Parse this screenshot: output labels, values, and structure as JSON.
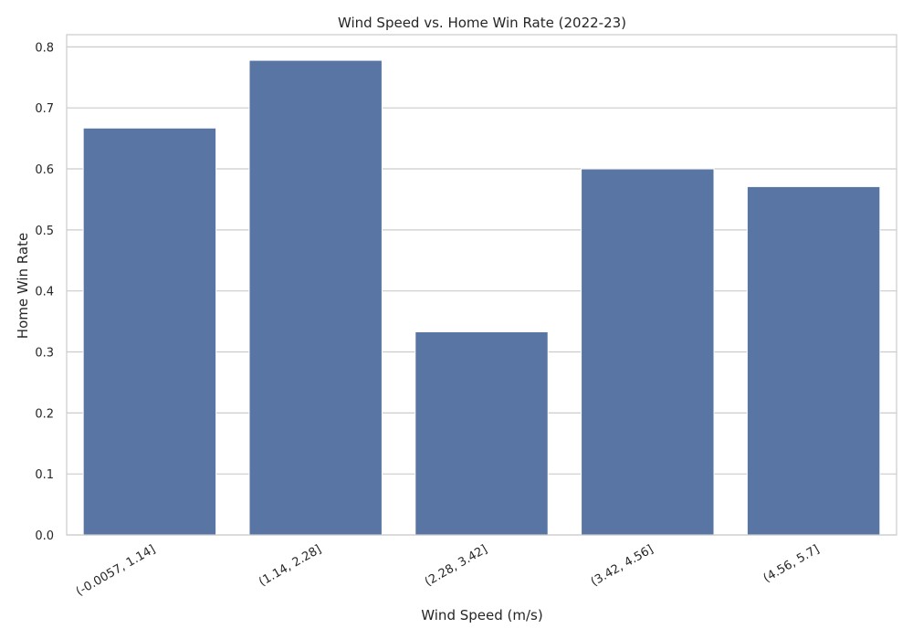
{
  "chart_data": {
    "type": "bar",
    "title": "Wind Speed vs. Home Win Rate (2022-23)",
    "xlabel": "Wind Speed (m/s)",
    "ylabel": "Home Win Rate",
    "categories": [
      "(-0.0057, 1.14]",
      "(1.14, 2.28]",
      "(2.28, 3.42]",
      "(3.42, 4.56]",
      "(4.56, 5.7]"
    ],
    "values": [
      0.667,
      0.778,
      0.333,
      0.6,
      0.571
    ],
    "ylim": [
      0,
      0.82
    ],
    "yticks": [
      "0.0",
      "0.1",
      "0.2",
      "0.3",
      "0.4",
      "0.5",
      "0.6",
      "0.7",
      "0.8"
    ],
    "grid": "horizontal",
    "bar_color": "#5875a4",
    "grid_color": "#cccccc",
    "frame_color": "#cccccc"
  }
}
